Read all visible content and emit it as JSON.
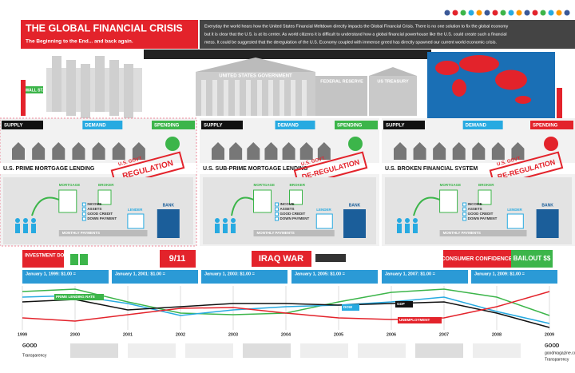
{
  "header": {
    "title": "THE GLOBAL FINANCIAL CRISIS",
    "subtitle": "The Beginning to the End... and back again.",
    "intro": [
      "Everyday the world hears how the United States Financial Meltdown directly impacts the Global Financial Crisis. There is no one solution to fix the global economy",
      "but it is clear that the U.S. is at its center. As world citizens it is difficult to understand how a global financial powerhouse like the U.S. could create such a financial",
      "mess. It could be suggested that the deregulation of the U.S. Economy coupled with immense greed has directly spawned our current world economic crisis."
    ]
  },
  "buildings": {
    "government": "UNITED STATES GOVERNMENT",
    "fed": "FEDERAL RESERVE",
    "treasury": "US TREASURY",
    "wall_st": "WALL ST."
  },
  "panels": [
    {
      "tabs": [
        "SUPPLY",
        "DEMAND",
        "SPENDING"
      ],
      "title": "U.S. PRIME MORTGAGE LENDING",
      "stamp_top": "U.S. GOVT.",
      "stamp": "REGULATION",
      "labels": [
        "MORTGAGE",
        "BROKER",
        "LENDER",
        "BANK"
      ],
      "requirements": [
        "INCOME",
        "ASSETS",
        "GOOD CREDIT",
        "DOWN PAYMENT"
      ],
      "payments": "MONTHLY PAYMENTS"
    },
    {
      "tabs": [
        "SUPPLY",
        "DEMAND",
        "SPENDING"
      ],
      "title": "U.S. SUB-PRIME MORTGAGE LENDING",
      "stamp_top": "U.S. GOVT.",
      "stamp": "DE-REGULATION",
      "labels": [
        "MORTGAGE",
        "BROKER",
        "LENDER",
        "BANK"
      ],
      "requirements": [
        "INCOME",
        "ASSETS",
        "GOOD CREDIT",
        "DOWN PAYMENT"
      ],
      "payments": "MONTHLY PAYMENTS"
    },
    {
      "tabs": [
        "SUPPLY",
        "DEMAND",
        "SPENDING"
      ],
      "title": "U.S. BROKEN FINANCIAL SYSTEM",
      "stamp_top": "U.S. GOVT.",
      "stamp": "RE-REGULATION",
      "labels": [
        "MORTGAGE",
        "BROKER",
        "LENDER",
        "BANK"
      ],
      "requirements": [
        "INCOME",
        "ASSETS",
        "GOOD CREDIT",
        "DOWN PAYMENT"
      ],
      "payments": "MONTHLY PAYMENTS"
    }
  ],
  "events": {
    "investment": "INVESTMENT DOLLARS",
    "sept11": "9/11",
    "iraq": "IRAQ WAR",
    "confidence": "CONSUMER CONFIDENCE",
    "bailout": "BAILOUT $$"
  },
  "rates": [
    "January 1, 1999: $1.00 =",
    "January 1, 2001: $1.00 =",
    "January 1, 2003: $1.00 =",
    "January 1, 2005: $1.00 =",
    "January 1, 2007: $1.00 =",
    "January 1, 2009: $1.00 ="
  ],
  "timeline": {
    "years": [
      "1999",
      "2000",
      "2001",
      "2002",
      "2003",
      "2004",
      "2005",
      "2006",
      "2007",
      "2008",
      "2009"
    ],
    "lines": [
      "PRIME LENDING RATE",
      "DOW",
      "GDP",
      "UNEMPLOYMENT"
    ]
  },
  "footer": {
    "brand": "GOOD",
    "topic": "Transparency",
    "site": "goodmagazine.com"
  }
}
